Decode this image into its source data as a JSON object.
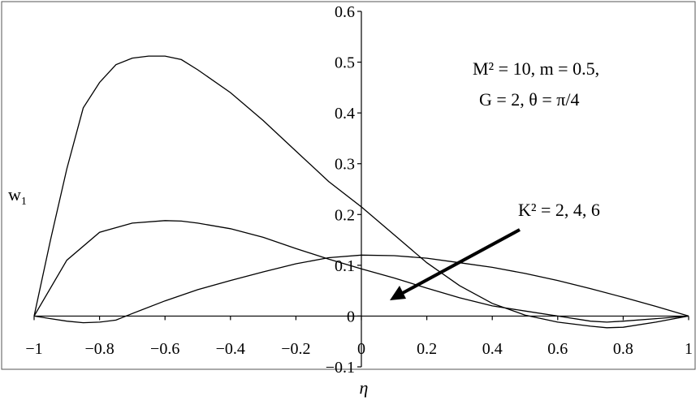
{
  "chart_data": {
    "type": "line",
    "xlabel": "η",
    "ylabel": "w1",
    "xlim": [
      -1,
      1
    ],
    "ylim": [
      -0.1,
      0.6
    ],
    "x_ticks": [
      -1,
      -0.8,
      -0.6,
      -0.4,
      -0.2,
      0,
      0.2,
      0.4,
      0.6,
      0.8,
      1
    ],
    "x_tick_labels": [
      "−1",
      "−0.8",
      "−0.6",
      "−0.4",
      "−0.2",
      "0",
      "0.2",
      "0.4",
      "0.6",
      "0.8",
      "1"
    ],
    "y_ticks": [
      -0.1,
      0,
      0.1,
      0.2,
      0.3,
      0.4,
      0.5,
      0.6
    ],
    "y_tick_labels": [
      "−0.1",
      "0",
      "0.1",
      "0.2",
      "0.3",
      "0.4",
      "0.5",
      "0.6"
    ],
    "grid": false,
    "annotations": {
      "params_line1": "M² = 10, m = 0.5,",
      "params_line2": "G = 2,  θ = π/4",
      "arrow_label": "K² = 2, 4, 6"
    },
    "series": [
      {
        "x": [
          -1,
          -0.95,
          -0.9,
          -0.85,
          -0.8,
          -0.75,
          -0.7,
          -0.65,
          -0.6,
          -0.55,
          -0.5,
          -0.4,
          -0.3,
          -0.2,
          -0.1,
          0,
          0.1,
          0.2,
          0.3,
          0.4,
          0.5,
          0.6,
          0.7,
          0.75,
          0.8,
          0.9,
          1
        ],
        "y": [
          0,
          0.15,
          0.29,
          0.41,
          0.46,
          0.495,
          0.508,
          0.512,
          0.512,
          0.505,
          0.485,
          0.44,
          0.385,
          0.325,
          0.265,
          0.215,
          0.16,
          0.105,
          0.06,
          0.025,
          0.002,
          -0.012,
          -0.02,
          -0.023,
          -0.022,
          -0.012,
          0
        ]
      },
      {
        "x": [
          -1,
          -0.9,
          -0.8,
          -0.7,
          -0.6,
          -0.55,
          -0.5,
          -0.4,
          -0.3,
          -0.2,
          -0.1,
          0,
          0.1,
          0.2,
          0.3,
          0.4,
          0.5,
          0.6,
          0.7,
          0.75,
          0.8,
          0.9,
          1
        ],
        "y": [
          0,
          0.11,
          0.165,
          0.183,
          0.188,
          0.187,
          0.183,
          0.172,
          0.155,
          0.133,
          0.112,
          0.093,
          0.075,
          0.055,
          0.036,
          0.02,
          0.01,
          0.0,
          -0.01,
          -0.012,
          -0.01,
          -0.005,
          0
        ]
      },
      {
        "x": [
          -1,
          -0.95,
          -0.9,
          -0.85,
          -0.8,
          -0.75,
          -0.7,
          -0.6,
          -0.5,
          -0.4,
          -0.3,
          -0.2,
          -0.1,
          0,
          0.1,
          0.2,
          0.3,
          0.4,
          0.5,
          0.6,
          0.7,
          0.8,
          0.9,
          1
        ],
        "y": [
          0,
          -0.005,
          -0.01,
          -0.013,
          -0.012,
          -0.008,
          0.005,
          0.03,
          0.052,
          0.07,
          0.087,
          0.103,
          0.115,
          0.12,
          0.119,
          0.114,
          0.105,
          0.096,
          0.084,
          0.07,
          0.054,
          0.037,
          0.019,
          0
        ]
      }
    ]
  }
}
